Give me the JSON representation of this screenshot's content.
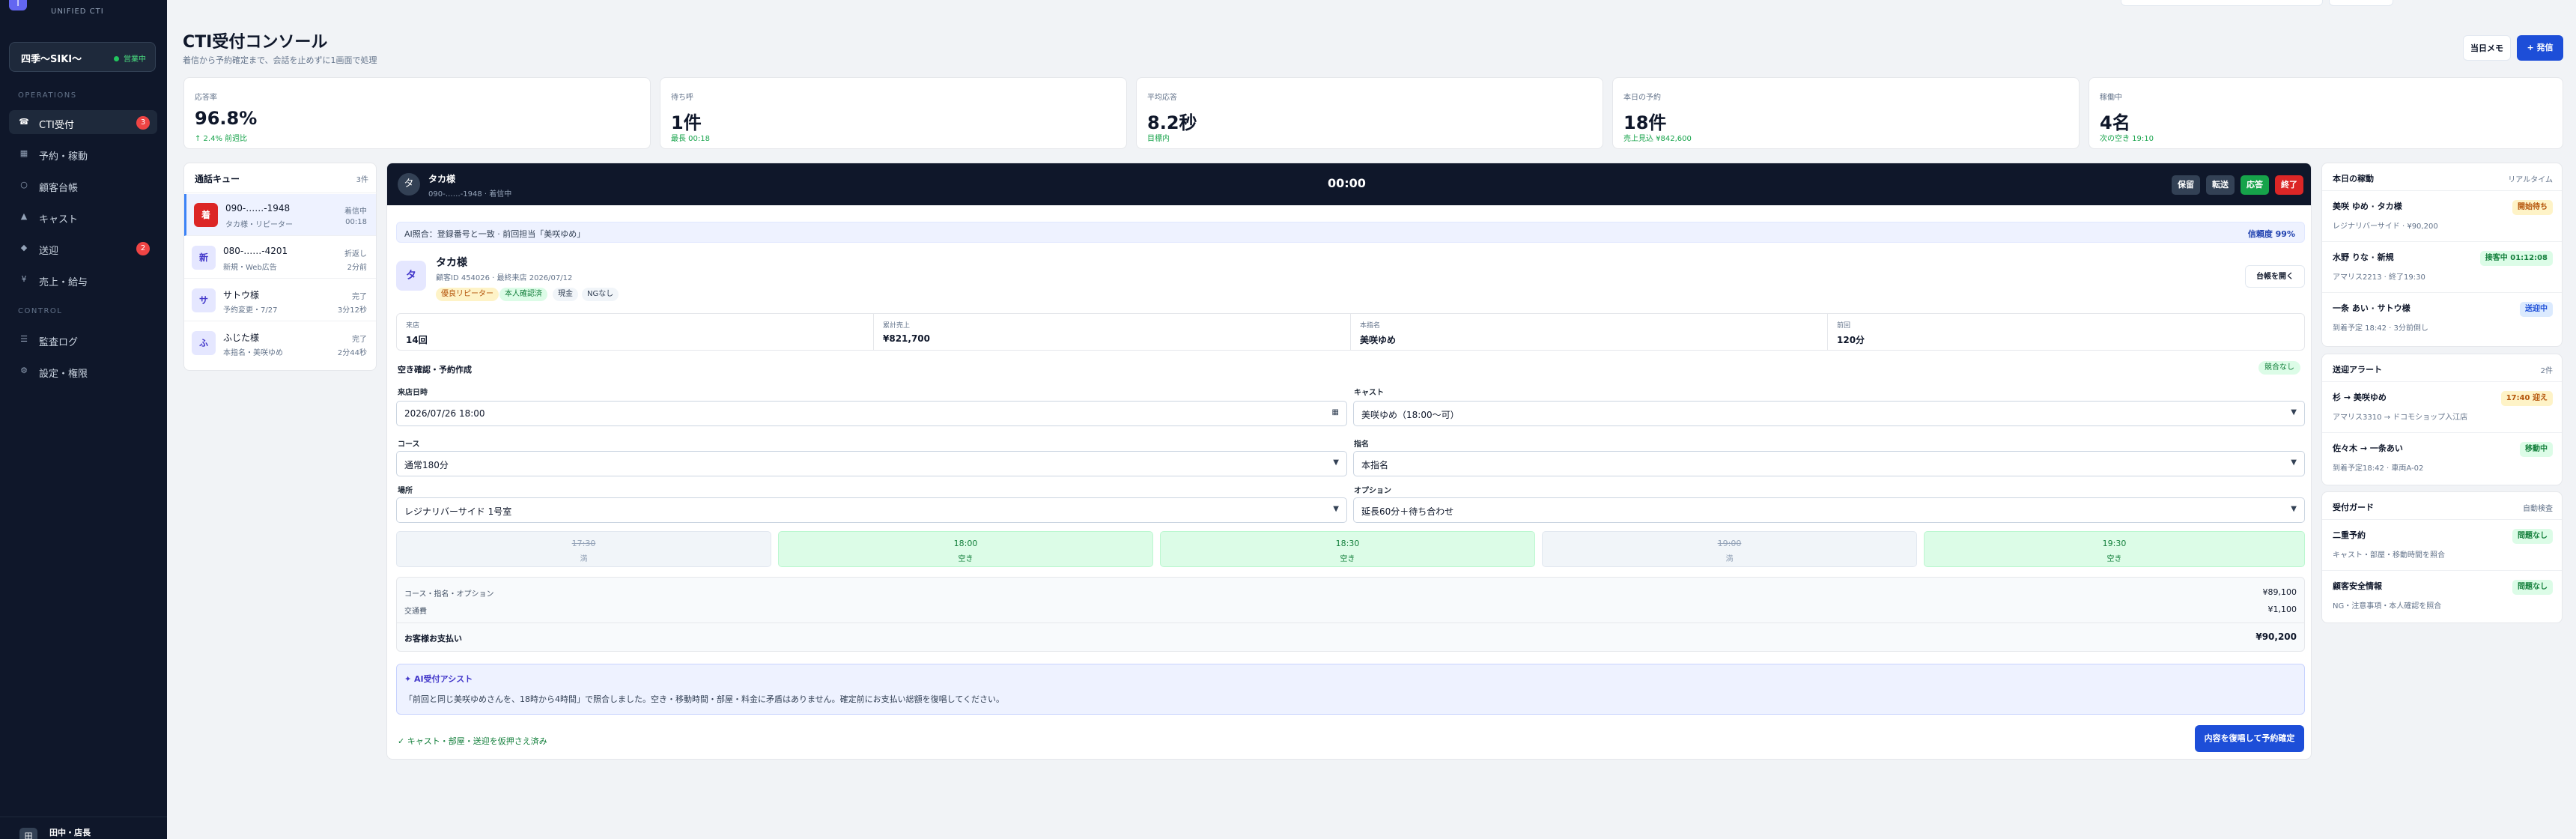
{
  "brand": {
    "logo": "T",
    "sub": "UNIFIED CTI"
  },
  "store": {
    "name": "四季〜SIKI〜",
    "status": "営業中"
  },
  "sidebar": {
    "operations_label": "OPERATIONS",
    "control_label": "CONTROL",
    "items": [
      {
        "icon": "phone-icon",
        "glyph": "☎",
        "label": "CTI受付",
        "badge": "3"
      },
      {
        "icon": "calendar-icon",
        "glyph": "▦",
        "label": "予約・稼動",
        "badge": ""
      },
      {
        "icon": "ledger-icon",
        "glyph": "○",
        "label": "顧客台帳",
        "badge": ""
      },
      {
        "icon": "user-icon",
        "glyph": "▲",
        "label": "キャスト",
        "badge": ""
      },
      {
        "icon": "route-icon",
        "glyph": "◆",
        "label": "送迎",
        "badge": "2"
      },
      {
        "icon": "yen-icon",
        "glyph": "¥",
        "label": "売上・給与",
        "badge": ""
      }
    ],
    "control_items": [
      {
        "icon": "log-icon",
        "glyph": "☰",
        "label": "監査ログ"
      },
      {
        "icon": "settings-icon",
        "glyph": "⚙",
        "label": "設定・権限"
      }
    ]
  },
  "user": {
    "icon": "田",
    "name": "田中・店長"
  },
  "page": {
    "title": "CTI受付コンソール",
    "subtitle": "着信から予約確定まで、会話を止めずに1画面で処理"
  },
  "header_buttons": {
    "memo": "当日メモ",
    "new": "+ 発信"
  },
  "kpis": [
    {
      "label": "応答率",
      "value": "96.8%",
      "note": "↑ 2.4% 前週比",
      "note_color": "#16a34a"
    },
    {
      "label": "待ち呼",
      "value": "1件",
      "note": "最長 00:18",
      "note_color": "#16a34a"
    },
    {
      "label": "平均応答",
      "value": "8.2秒",
      "note": "目標内",
      "note_color": "#16a34a"
    },
    {
      "label": "本日の予約",
      "value": "18件",
      "note": "売上見込 ¥842,600",
      "note_color": "#16a34a"
    },
    {
      "label": "稼働中",
      "value": "4名",
      "note": "次の空き 19:10",
      "note_color": "#16a34a"
    }
  ],
  "queue": {
    "title": "通話キュー",
    "count": "3件",
    "items": [
      {
        "avatar": "着",
        "number": "090-……-1948",
        "sub": "タカ様・リピーター",
        "status": "着信中",
        "time": "00:18"
      },
      {
        "avatar": "新",
        "number": "080-……-4201",
        "sub": "新規・Web広告",
        "status": "折返し",
        "time": "2分前"
      },
      {
        "avatar": "サ",
        "number": "サトウ様",
        "sub": "予約変更・7/27",
        "status": "完了",
        "time": "3分12秒"
      },
      {
        "avatar": "ふ",
        "number": "ふじた様",
        "sub": "本指名・美咲ゆめ",
        "status": "完了",
        "time": "2分44秒"
      }
    ]
  },
  "call": {
    "avatar": "タ",
    "name": "タカ様",
    "sub": "090-……-1948 · 着信中",
    "timer": "00:00",
    "btn_hold": "保留",
    "btn_transfer": "転送",
    "btn_answer": "応答",
    "btn_end": "終了",
    "ai_text": "AI照合：登録番号と一致 · 前回担当「美咲ゆめ」",
    "ai_conf": "信頼度 99%",
    "customer": {
      "avatar": "タ",
      "name": "タカ様",
      "meta": "顧客ID 454026 · 最終来店 2026/07/12",
      "tags": [
        "優良リピーター",
        "本人確認済",
        "現金",
        "NGなし"
      ],
      "ledger_btn": "台帳を開く"
    },
    "stats": [
      {
        "label": "来店",
        "value": "14回"
      },
      {
        "label": "累計売上",
        "value": "¥821,700"
      },
      {
        "label": "本指名",
        "value": "美咲ゆめ"
      },
      {
        "label": "前回",
        "value": "120分"
      }
    ],
    "reservation": {
      "title": "空き確認・予約作成",
      "badge": "競合なし",
      "date_label": "来店日時",
      "date_value": "2026/07/26 18:00",
      "cast_label": "キャスト",
      "cast_value": "美咲ゆめ（18:00〜可）",
      "course_label": "コース",
      "course_value": "通常180分",
      "nomination_label": "指名",
      "nomination_value": "本指名",
      "place_label": "場所",
      "place_value": "レジナリバーサイド 1号室",
      "option_label": "オプション",
      "option_value": "延長60分＋待ち合わせ"
    },
    "slots": [
      {
        "time": "17:30",
        "state": "満",
        "free": false
      },
      {
        "time": "18:00",
        "state": "空き",
        "free": true
      },
      {
        "time": "18:30",
        "state": "空き",
        "free": true
      },
      {
        "time": "19:00",
        "state": "満",
        "free": false
      },
      {
        "time": "19:30",
        "state": "空き",
        "free": true
      }
    ],
    "price": {
      "line1_label": "コース・指名・オプション",
      "line1_value": "¥89,100",
      "line2_label": "交通費",
      "line2_value": "¥1,100",
      "total_label": "お客様お支払い",
      "total_value": "¥90,200"
    },
    "assist": {
      "title": "✦ AI受付アシスト",
      "body": "「前回と同じ美咲ゆめさんを、18時から4時間」で照合しました。空き・移動時間・部屋・料金に矛盾はありません。確定前にお支払い総額を復唱してください。"
    },
    "ok_line": "✓ キャスト・部屋・送迎を仮押さえ済み",
    "confirm_btn": "内容を復唱して予約確定"
  },
  "movement": {
    "title": "本日の稼動",
    "meta": "リアルタイム",
    "items": [
      {
        "name": "美咲 ゆめ · タカ様",
        "sub": "レジナリバーサイド · ¥90,200",
        "pill": "開始待ち",
        "tone": "amber"
      },
      {
        "name": "水野 りな · 新規",
        "sub": "アマリス2213 · 終了19:30",
        "pill": "接客中 01:12:08",
        "tone": "green"
      },
      {
        "name": "一条 あい · サトウ様",
        "sub": "到着予定 18:42 · 3分前倒し",
        "pill": "送迎中",
        "tone": "blue"
      }
    ]
  },
  "alerts": {
    "title": "送迎アラート",
    "meta": "2件",
    "items": [
      {
        "name": "杉 → 美咲ゆめ",
        "sub": "アマリス3310 → ドコモショップ入江店",
        "pill": "17:40 迎え",
        "tone": "amber"
      },
      {
        "name": "佐々木 → 一条あい",
        "sub": "到着予定18:42 · 車両A-02",
        "pill": "移動中",
        "tone": "green"
      }
    ]
  },
  "guard": {
    "title": "受付ガード",
    "meta": "自動検査",
    "items": [
      {
        "name": "二重予約",
        "sub": "キャスト・部屋・移動時間を照合",
        "pill": "問題なし",
        "tone": "green"
      },
      {
        "name": "顧客安全情報",
        "sub": "NG・注意事項・本人確認を照合",
        "pill": "問題なし",
        "tone": "green"
      }
    ]
  }
}
